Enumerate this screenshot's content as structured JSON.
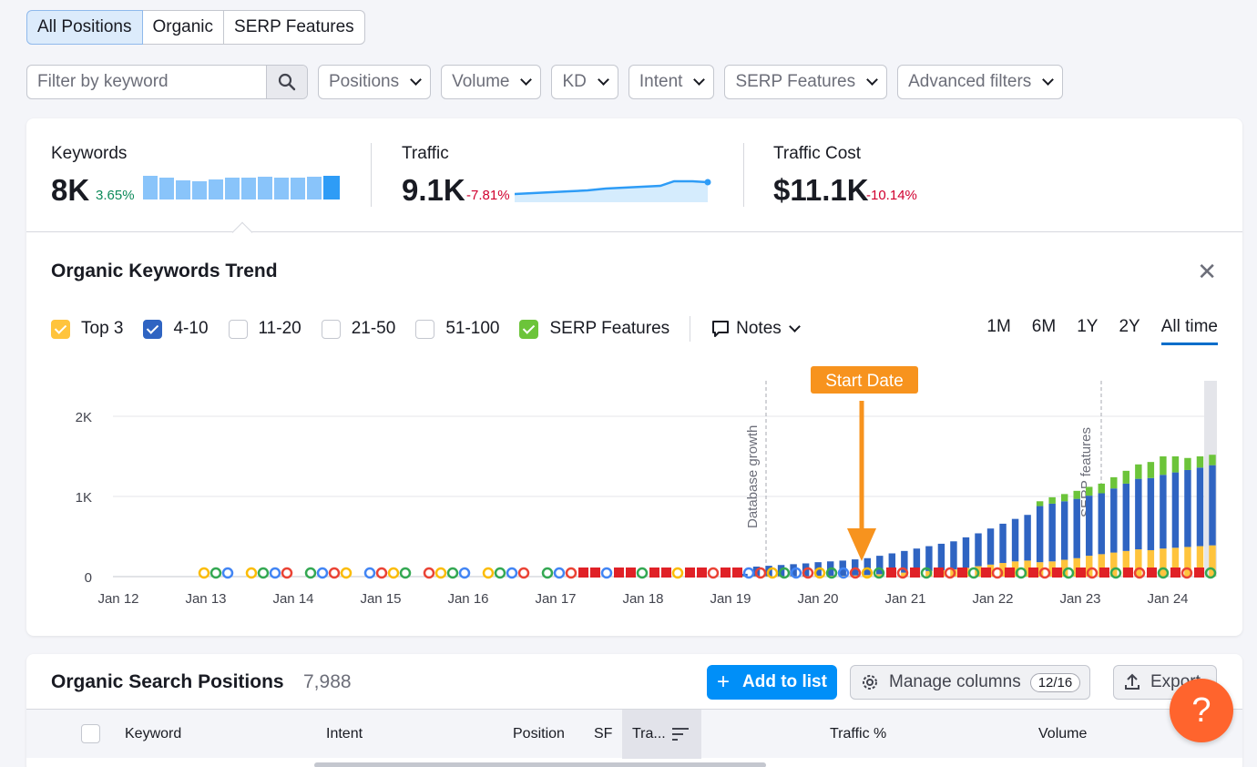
{
  "tabs": [
    {
      "label": "All Positions",
      "active": true
    },
    {
      "label": "Organic",
      "active": false
    },
    {
      "label": "SERP Features",
      "active": false
    }
  ],
  "filters": {
    "search_placeholder": "Filter by keyword",
    "dropdowns": [
      "Positions",
      "Volume",
      "KD",
      "Intent",
      "SERP Features",
      "Advanced filters"
    ]
  },
  "metrics": {
    "keywords": {
      "label": "Keywords",
      "value": "8K",
      "change": "3.65%",
      "trend": "up"
    },
    "traffic": {
      "label": "Traffic",
      "value": "9.1K",
      "change": "-7.81%",
      "trend": "down"
    },
    "traffic_cost": {
      "label": "Traffic Cost",
      "value": "$11.1K",
      "change": "-10.14%",
      "trend": "down"
    }
  },
  "trend": {
    "title": "Organic Keywords Trend",
    "close_icon": "close-icon",
    "legend": [
      {
        "label": "Top 3",
        "checked": true,
        "color": "#ffc43d"
      },
      {
        "label": "4-10",
        "checked": true,
        "color": "#2f64c2"
      },
      {
        "label": "11-20",
        "checked": false,
        "color": "#ffffff"
      },
      {
        "label": "21-50",
        "checked": false,
        "color": "#ffffff"
      },
      {
        "label": "51-100",
        "checked": false,
        "color": "#ffffff"
      },
      {
        "label": "SERP Features",
        "checked": true,
        "color": "#6cc43a"
      }
    ],
    "notes_label": "Notes",
    "ranges": [
      {
        "label": "1M",
        "active": false
      },
      {
        "label": "6M",
        "active": false
      },
      {
        "label": "1Y",
        "active": false
      },
      {
        "label": "2Y",
        "active": false
      },
      {
        "label": "All time",
        "active": true
      }
    ]
  },
  "chart_data": {
    "type": "bar",
    "stacked": true,
    "x_ticks": [
      "Jan 12",
      "Jan 13",
      "Jan 14",
      "Jan 15",
      "Jan 16",
      "Jan 17",
      "Jan 18",
      "Jan 19",
      "Jan 20",
      "Jan 21",
      "Jan 22",
      "Jan 23",
      "Jan 24"
    ],
    "y_ticks": [
      "0",
      "1K",
      "2K"
    ],
    "ylim": [
      0,
      2000
    ],
    "grid": true,
    "annotations": [
      {
        "label": "Database growth",
        "x": "Jan 19"
      },
      {
        "label": "SERP features",
        "x": "Jan 23"
      },
      {
        "label": "Start Date",
        "x": "Jan 20"
      }
    ],
    "series_colors": {
      "Top 3": "#ffc43d",
      "4-10": "#2f64c2",
      "SERP Features": "#6cc43a"
    },
    "series": [
      {
        "name": "Top 3",
        "values": [
          5,
          5,
          5,
          5,
          5,
          5,
          10,
          10,
          10,
          15,
          20,
          30,
          40,
          50,
          60,
          70,
          80,
          90,
          110,
          130,
          150,
          170,
          190,
          200,
          180,
          190,
          210,
          230,
          260,
          280,
          300,
          320,
          340,
          330,
          350,
          360,
          370,
          380,
          390
        ]
      },
      {
        "name": "4-10",
        "values": [
          30,
          120,
          130,
          140,
          150,
          160,
          170,
          180,
          190,
          200,
          210,
          230,
          250,
          270,
          290,
          310,
          330,
          350,
          380,
          410,
          450,
          490,
          530,
          570,
          700,
          720,
          730,
          740,
          750,
          760,
          800,
          840,
          880,
          900,
          920,
          940,
          960,
          980,
          1000
        ]
      },
      {
        "name": "SERP Features",
        "values": [
          0,
          0,
          0,
          0,
          0,
          0,
          0,
          0,
          0,
          0,
          0,
          0,
          0,
          0,
          0,
          0,
          0,
          0,
          0,
          0,
          0,
          0,
          0,
          0,
          60,
          80,
          90,
          100,
          110,
          120,
          140,
          160,
          180,
          200,
          230,
          200,
          150,
          140,
          130
        ]
      }
    ]
  },
  "positions": {
    "title": "Organic Search Positions",
    "count": "7,988",
    "add_to_list": "Add to list",
    "manage_columns": "Manage columns",
    "columns_count": "12/16",
    "export": "Export",
    "headers": [
      "Keyword",
      "Intent",
      "Position",
      "SF",
      "Tra...",
      "Traffic %",
      "Volume"
    ]
  },
  "help": "?"
}
